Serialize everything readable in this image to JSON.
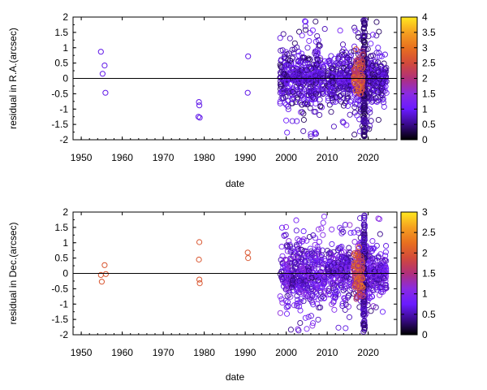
{
  "chart_data": [
    {
      "type": "scatter",
      "xlabel": "date",
      "ylabel": "residual in R.A.(arcsec)",
      "xlim": [
        1948,
        2027
      ],
      "ylim": [
        -2,
        2
      ],
      "xticks": [
        "1950",
        "1960",
        "1970",
        "1980",
        "1990",
        "2000",
        "2010",
        "2020"
      ],
      "yticks": [
        "2",
        "1.5",
        "1",
        "0.5",
        "0",
        "-0.5",
        "-1",
        "-1.5",
        "-2"
      ],
      "zero_line": true,
      "grid": false,
      "colorbar": {
        "ticks": [
          "4",
          "3.5",
          "3",
          "2.5",
          "2",
          "1.5",
          "1",
          "0.5",
          "0"
        ],
        "range": [
          0,
          4
        ],
        "colors": [
          "#000000",
          "#3a0a8c",
          "#6a1bff",
          "#8a2be2",
          "#b0307a",
          "#d24a3a",
          "#e8701f",
          "#f5a020",
          "#ffe820"
        ]
      },
      "points": [
        {
          "x": 1954.8,
          "y": 0.87,
          "c": 0.9
        },
        {
          "x": 1955.2,
          "y": 0.15,
          "c": 0.9
        },
        {
          "x": 1955.7,
          "y": 0.42,
          "c": 0.9
        },
        {
          "x": 1955.9,
          "y": -0.47,
          "c": 0.9
        },
        {
          "x": 1978.7,
          "y": -0.77,
          "c": 0.9
        },
        {
          "x": 1978.8,
          "y": -0.88,
          "c": 0.9
        },
        {
          "x": 1978.6,
          "y": -1.25,
          "c": 0.9
        },
        {
          "x": 1978.9,
          "y": -1.28,
          "c": 0.9
        },
        {
          "x": 1990.7,
          "y": 0.72,
          "c": 0.9
        },
        {
          "x": 1990.6,
          "y": -0.47,
          "c": 0.9
        }
      ],
      "cluster_ranges": [
        {
          "x": [
            1998.5,
            2009.5
          ],
          "spread": 0.45
        },
        {
          "x": [
            2010,
            2016
          ],
          "spread": 0.4
        },
        {
          "x": [
            2016.5,
            2021
          ],
          "spread": 0.55
        },
        {
          "x": [
            2021,
            2024.5
          ],
          "spread": 0.3
        }
      ]
    },
    {
      "type": "scatter",
      "xlabel": "date",
      "ylabel": "residual in Dec.(arcsec)",
      "xlim": [
        1948,
        2027
      ],
      "ylim": [
        -2,
        2
      ],
      "xticks": [
        "1950",
        "1960",
        "1970",
        "1980",
        "1990",
        "2000",
        "2010",
        "2020"
      ],
      "yticks": [
        "2",
        "1.5",
        "1",
        "0.5",
        "0",
        "-0.5",
        "-1",
        "-1.5",
        "-2"
      ],
      "zero_line": true,
      "grid": false,
      "colorbar": {
        "ticks": [
          "3",
          "2.5",
          "2",
          "1.5",
          "1",
          "0.5",
          "0"
        ],
        "range": [
          0,
          3
        ],
        "colors": [
          "#000000",
          "#3a0a8c",
          "#6a1bff",
          "#8a2be2",
          "#b0307a",
          "#d24a3a",
          "#e8701f",
          "#f5a020",
          "#ffe820"
        ]
      },
      "points": [
        {
          "x": 1954.8,
          "y": -0.05,
          "c": 2.0
        },
        {
          "x": 1955.0,
          "y": -0.27,
          "c": 2.0
        },
        {
          "x": 1955.7,
          "y": 0.27,
          "c": 2.0
        },
        {
          "x": 1956.0,
          "y": -0.02,
          "c": 2.0
        },
        {
          "x": 1978.8,
          "y": 1.02,
          "c": 2.0
        },
        {
          "x": 1978.7,
          "y": 0.45,
          "c": 2.0
        },
        {
          "x": 1978.8,
          "y": -0.2,
          "c": 2.0
        },
        {
          "x": 1978.9,
          "y": -0.32,
          "c": 2.0
        },
        {
          "x": 1990.6,
          "y": 0.68,
          "c": 2.0
        },
        {
          "x": 1990.7,
          "y": 0.5,
          "c": 2.0
        }
      ],
      "cluster_ranges": [
        {
          "x": [
            1998.5,
            2009.5
          ],
          "spread": 0.5
        },
        {
          "x": [
            2010,
            2016
          ],
          "spread": 0.4
        },
        {
          "x": [
            2016.5,
            2021
          ],
          "spread": 0.55
        },
        {
          "x": [
            2021,
            2024.5
          ],
          "spread": 0.3
        }
      ]
    }
  ]
}
